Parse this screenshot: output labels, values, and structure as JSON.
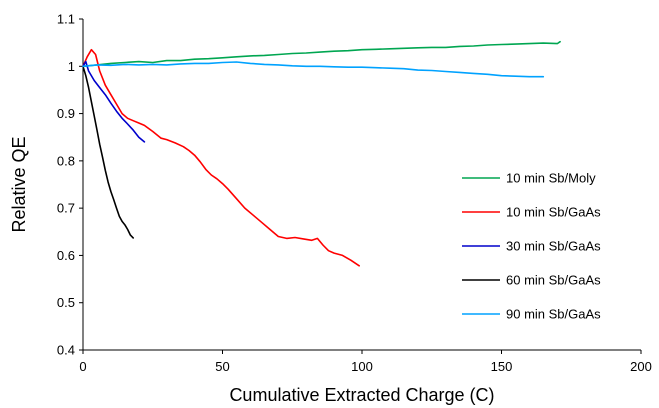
{
  "chart_data": {
    "type": "line",
    "title": "",
    "xlabel": "Cumulative Extracted Charge (C)",
    "ylabel": "Relative QE",
    "xlim": [
      0,
      200
    ],
    "ylim": [
      0.4,
      1.1
    ],
    "x_ticks": [
      0,
      50,
      100,
      150,
      200
    ],
    "y_ticks": [
      0.4,
      0.5,
      0.6,
      0.7,
      0.8,
      0.9,
      1,
      1.1
    ],
    "x_tick_labels": [
      "0",
      "50",
      "100",
      "150",
      "200"
    ],
    "y_tick_labels": [
      "0.4",
      "0.5",
      "0.6",
      "0.7",
      "0.8",
      "0.9",
      "1",
      "1.1"
    ],
    "grid": false,
    "legend_position": "right",
    "series": [
      {
        "name": "10 min Sb/Moly",
        "color": "#00a651",
        "x": [
          0,
          5,
          10,
          15,
          20,
          25,
          30,
          35,
          40,
          45,
          50,
          55,
          60,
          65,
          70,
          75,
          80,
          85,
          90,
          95,
          100,
          105,
          110,
          115,
          120,
          125,
          130,
          135,
          140,
          145,
          150,
          155,
          160,
          165,
          170,
          171
        ],
        "y": [
          1.0,
          1.003,
          1.006,
          1.008,
          1.01,
          1.008,
          1.012,
          1.012,
          1.015,
          1.016,
          1.018,
          1.02,
          1.022,
          1.023,
          1.025,
          1.027,
          1.028,
          1.03,
          1.032,
          1.033,
          1.035,
          1.036,
          1.037,
          1.038,
          1.039,
          1.04,
          1.04,
          1.042,
          1.043,
          1.045,
          1.046,
          1.047,
          1.048,
          1.049,
          1.048,
          1.052
        ]
      },
      {
        "name": "10 min Sb/GaAs",
        "color": "#ff0000",
        "x": [
          0,
          1.5,
          3,
          4.5,
          6,
          8,
          10,
          12,
          14,
          16,
          18,
          20,
          22,
          25,
          28,
          30,
          33,
          36,
          38,
          40,
          42,
          44,
          46,
          48,
          50,
          52,
          55,
          58,
          61,
          64,
          67,
          70,
          73,
          76,
          79,
          82,
          84,
          86,
          88,
          90,
          93,
          96,
          99
        ],
        "y": [
          1.0,
          1.02,
          1.035,
          1.025,
          0.99,
          0.96,
          0.94,
          0.92,
          0.9,
          0.89,
          0.885,
          0.88,
          0.875,
          0.862,
          0.848,
          0.845,
          0.838,
          0.83,
          0.822,
          0.812,
          0.798,
          0.782,
          0.77,
          0.762,
          0.752,
          0.74,
          0.72,
          0.7,
          0.685,
          0.67,
          0.655,
          0.64,
          0.636,
          0.638,
          0.635,
          0.632,
          0.636,
          0.622,
          0.61,
          0.605,
          0.6,
          0.59,
          0.578
        ]
      },
      {
        "name": "30 min Sb/GaAs",
        "color": "#0000cc",
        "x": [
          0,
          1,
          2,
          4,
          6,
          8,
          10,
          12,
          14,
          16,
          18,
          20,
          22
        ],
        "y": [
          1.0,
          1.01,
          0.99,
          0.97,
          0.955,
          0.94,
          0.922,
          0.905,
          0.89,
          0.878,
          0.865,
          0.85,
          0.84
        ]
      },
      {
        "name": "60 min Sb/GaAs",
        "color": "#000000",
        "x": [
          0,
          1,
          2,
          3,
          4,
          5,
          6,
          7,
          8,
          9,
          10,
          11,
          12,
          13,
          14,
          15,
          16,
          17,
          18
        ],
        "y": [
          1.0,
          0.98,
          0.955,
          0.925,
          0.895,
          0.865,
          0.835,
          0.808,
          0.78,
          0.755,
          0.735,
          0.718,
          0.7,
          0.683,
          0.672,
          0.665,
          0.655,
          0.643,
          0.637
        ]
      },
      {
        "name": "90 min Sb/GaAs",
        "color": "#00a2ff",
        "x": [
          0,
          5,
          10,
          15,
          20,
          25,
          30,
          35,
          40,
          45,
          50,
          55,
          60,
          65,
          70,
          75,
          80,
          85,
          90,
          95,
          100,
          105,
          110,
          115,
          120,
          125,
          130,
          135,
          140,
          145,
          150,
          155,
          160,
          165
        ],
        "y": [
          1.0,
          1.003,
          1.002,
          1.004,
          1.003,
          1.004,
          1.003,
          1.005,
          1.006,
          1.006,
          1.008,
          1.009,
          1.006,
          1.004,
          1.003,
          1.001,
          1.0,
          1.0,
          0.999,
          0.998,
          0.998,
          0.997,
          0.996,
          0.995,
          0.992,
          0.991,
          0.989,
          0.987,
          0.985,
          0.983,
          0.98,
          0.979,
          0.978,
          0.978
        ]
      }
    ]
  }
}
